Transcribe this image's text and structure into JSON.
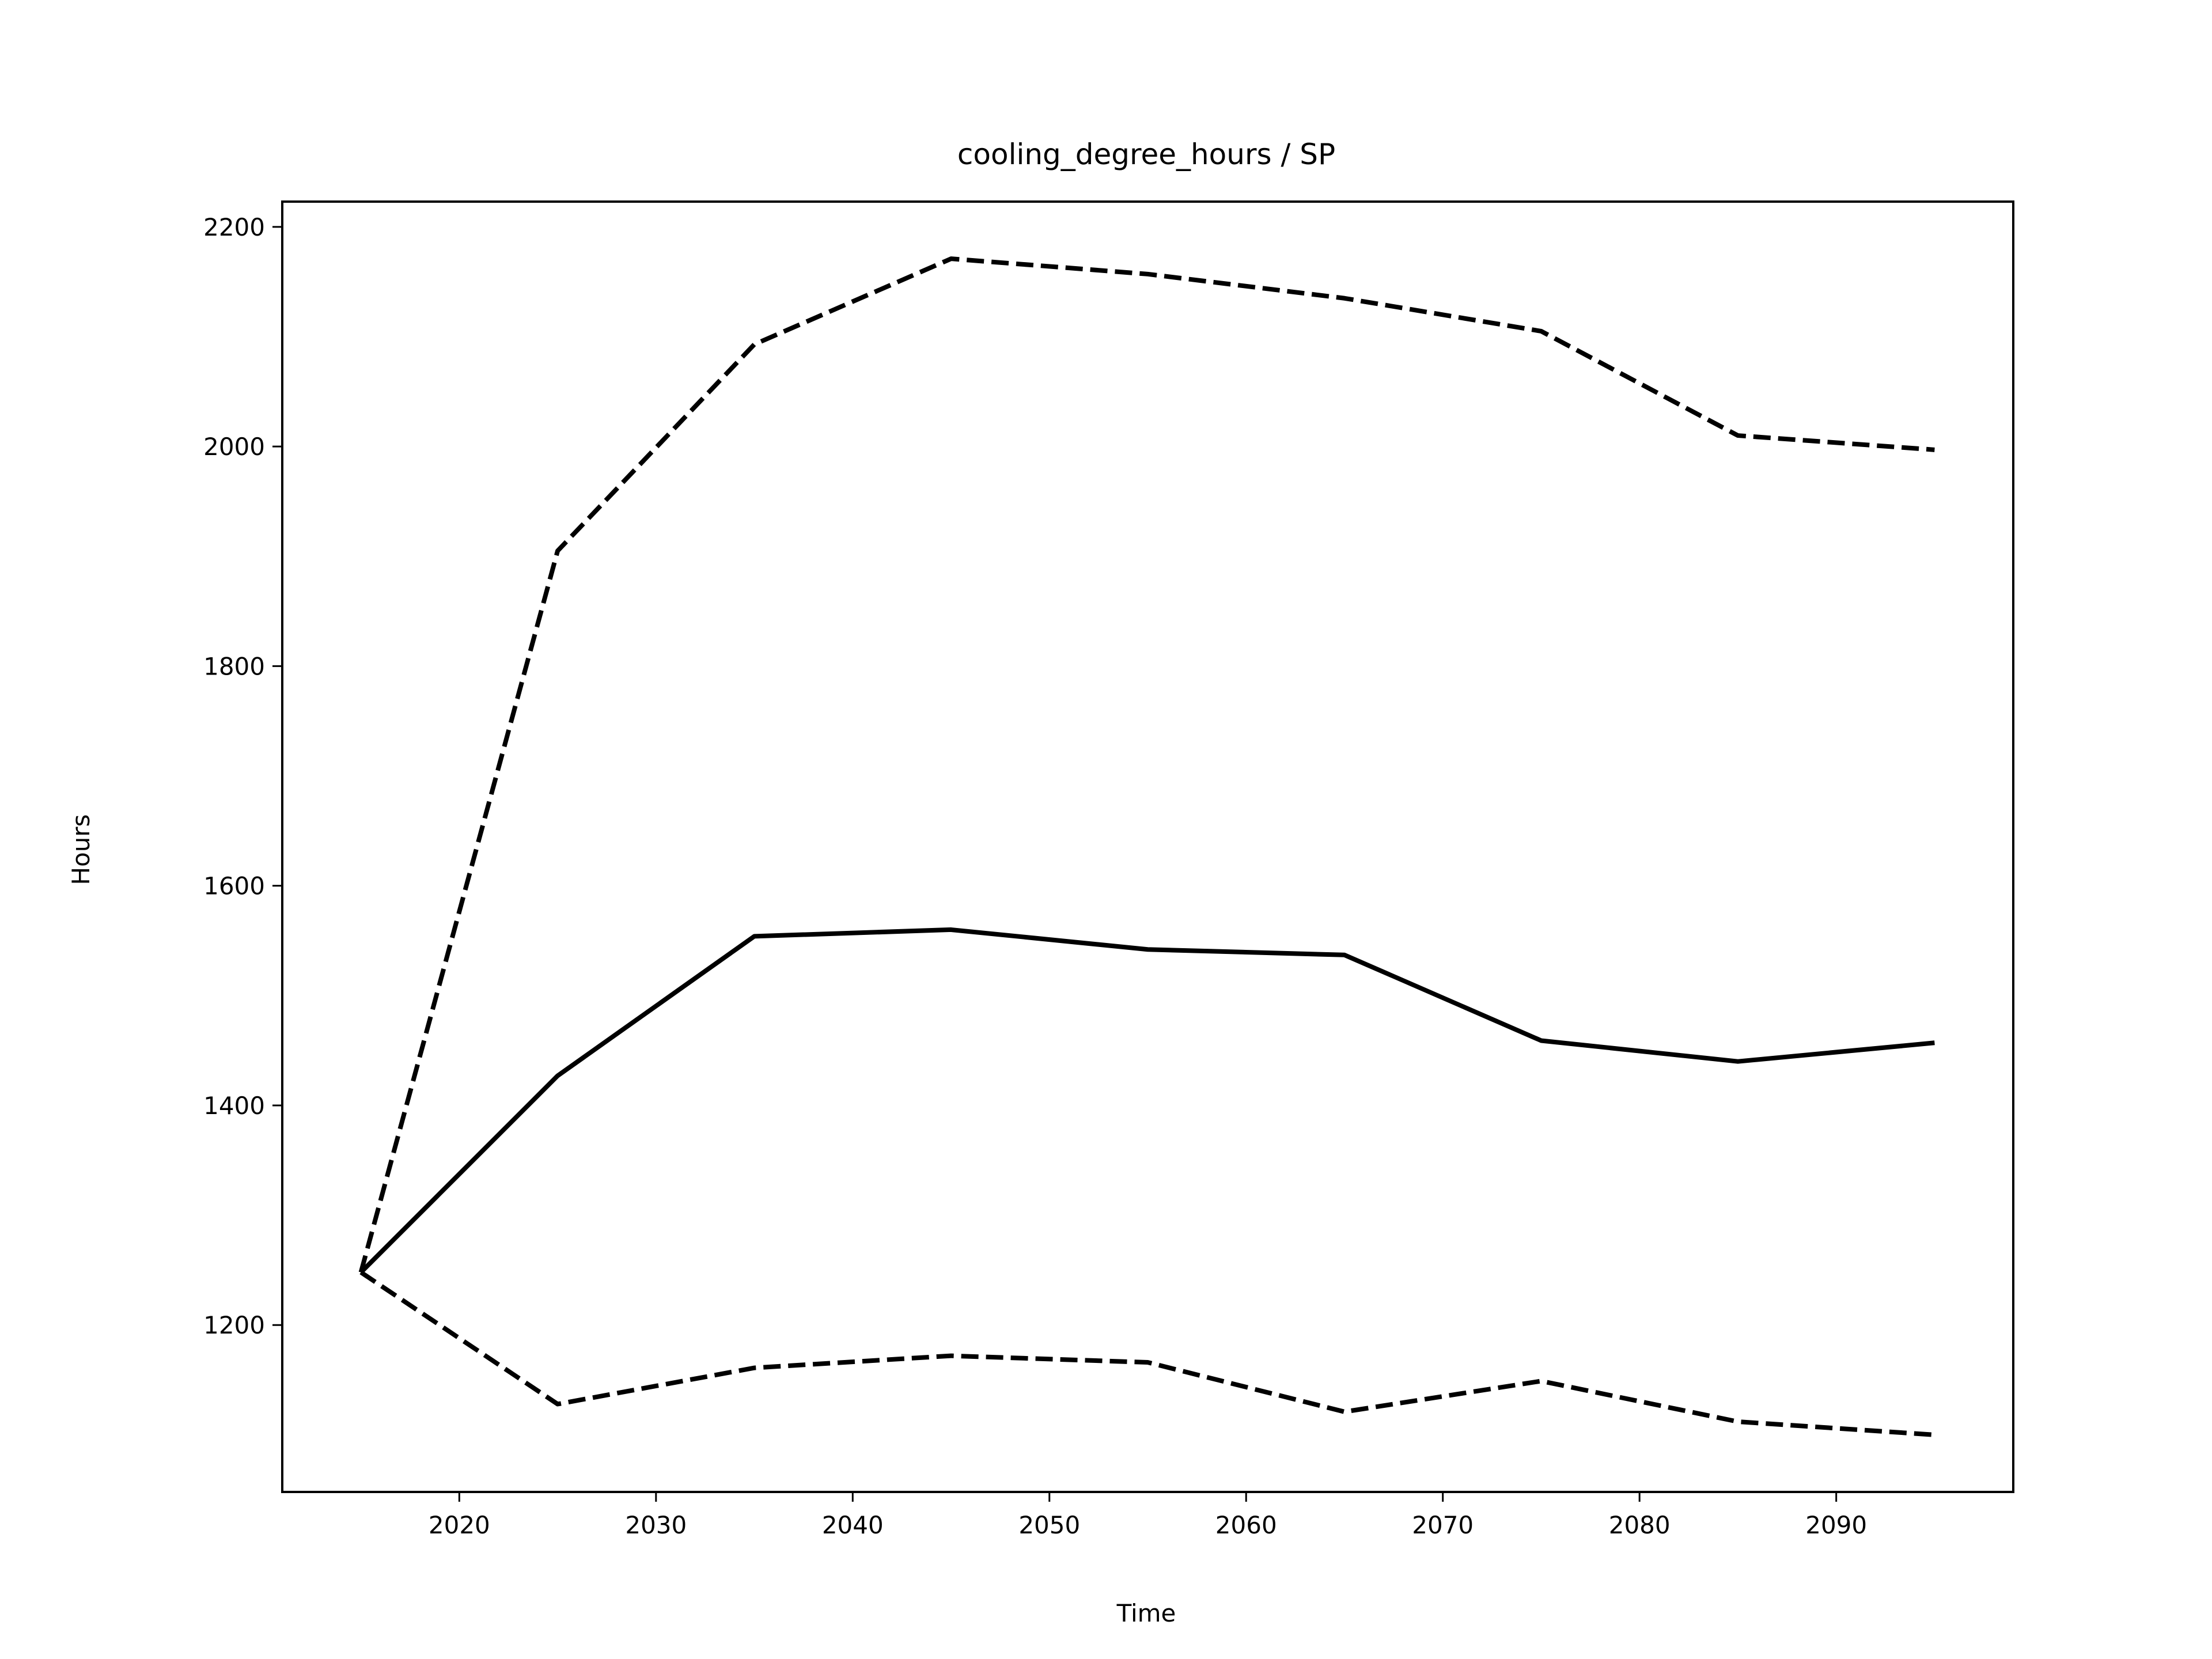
{
  "chart_data": {
    "type": "line",
    "title": "cooling_degree_hours / SP",
    "xlabel": "Time",
    "ylabel": "Hours",
    "xlim": [
      2011,
      2099
    ],
    "ylim": [
      1048,
      2223
    ],
    "x_ticks": [
      2020,
      2030,
      2040,
      2050,
      2060,
      2070,
      2080,
      2090
    ],
    "y_ticks": [
      1200,
      1400,
      1600,
      1800,
      2000,
      2200
    ],
    "grid": false,
    "x": [
      2015,
      2025,
      2035,
      2045,
      2055,
      2065,
      2075,
      2085,
      2095
    ],
    "series": [
      {
        "style": "dashed",
        "color": "#000000",
        "values": [
          1248,
          1905,
          2093,
          2171,
          2157,
          2135,
          2105,
          2010,
          1997
        ]
      },
      {
        "style": "solid",
        "color": "#000000",
        "values": [
          1248,
          1427,
          1554,
          1560,
          1542,
          1537,
          1459,
          1440,
          1457
        ]
      },
      {
        "style": "dashed",
        "color": "#000000",
        "values": [
          1248,
          1128,
          1161,
          1172,
          1166,
          1121,
          1149,
          1112,
          1100
        ]
      }
    ]
  }
}
